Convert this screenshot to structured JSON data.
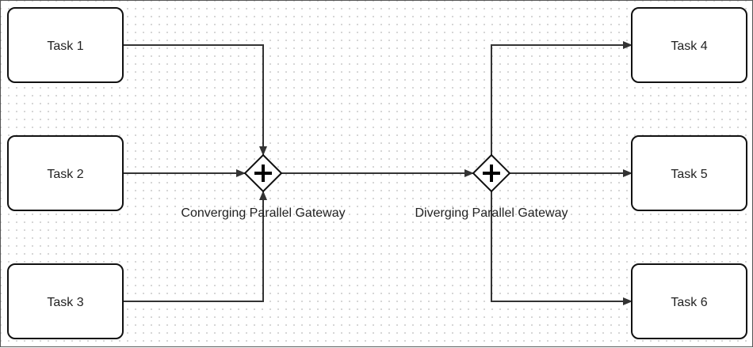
{
  "diagram": {
    "tasks": [
      {
        "id": "t1",
        "label": "Task 1"
      },
      {
        "id": "t2",
        "label": "Task 2"
      },
      {
        "id": "t3",
        "label": "Task 3"
      },
      {
        "id": "t4",
        "label": "Task 4"
      },
      {
        "id": "t5",
        "label": "Task 5"
      },
      {
        "id": "t6",
        "label": "Task 6"
      }
    ],
    "gateways": [
      {
        "id": "g1",
        "type": "parallel",
        "label": "Converging Parallel Gateway"
      },
      {
        "id": "g2",
        "type": "parallel",
        "label": "Diverging Parallel Gateway"
      }
    ],
    "flows": [
      {
        "from": "t1",
        "to": "g1"
      },
      {
        "from": "t2",
        "to": "g1"
      },
      {
        "from": "t3",
        "to": "g1"
      },
      {
        "from": "g1",
        "to": "g2"
      },
      {
        "from": "g2",
        "to": "t4"
      },
      {
        "from": "g2",
        "to": "t5"
      },
      {
        "from": "g2",
        "to": "t6"
      }
    ]
  }
}
